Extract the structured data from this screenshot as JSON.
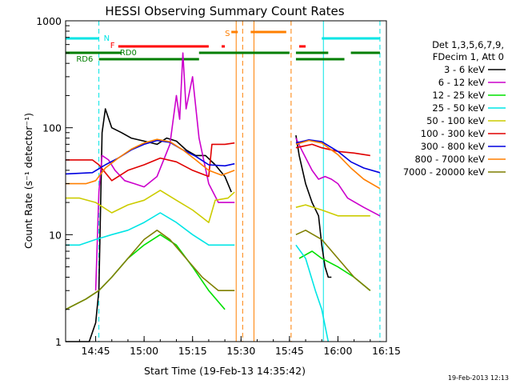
{
  "chart_data": {
    "type": "line",
    "title": "HESSI Observing Summary Count Rates",
    "xlabel": "Start Time (19-Feb-13 14:35:42)",
    "ylabel": "Count Rate (s⁻¹ detector⁻¹)",
    "y_scale": "log",
    "ylim": [
      1,
      1000
    ],
    "xlim": [
      "14:35:42",
      "16:15:00"
    ],
    "x_ticks": [
      "14:45",
      "15:00",
      "15:15",
      "15:30",
      "15:45",
      "16:00",
      "16:15"
    ],
    "y_ticks": [
      "1",
      "10",
      "100",
      "1000"
    ],
    "grid": false,
    "legend_position": "right",
    "legend_header": [
      "Det 1,3,5,6,7,9,",
      "FDecim 1, Att 0"
    ],
    "footer_date": "19-Feb-2013 12:13",
    "flag_labels": {
      "saa": "S",
      "night": "N",
      "flare": "F",
      "rd0": "RD0",
      "rd6": "RD6"
    },
    "flag_colors": {
      "saa": "#ff7f00",
      "night": "#00e5e5",
      "flare": "#ff0000",
      "decim": "#007f00"
    },
    "flags": {
      "night": [
        [
          "14:35:42",
          "14:46:00"
        ],
        [
          "15:55:00",
          "16:13:00"
        ]
      ],
      "flare": [
        [
          "14:52:00",
          "15:20:00"
        ],
        [
          "15:24:00",
          "15:25:00"
        ],
        [
          "15:48:00",
          "15:50:00"
        ]
      ],
      "saa": [
        [
          "15:27:00",
          "15:29:00"
        ],
        [
          "15:33:00",
          "15:44:00"
        ]
      ],
      "rd0": [
        [
          "14:35:42",
          "14:53:00"
        ],
        [
          "15:17:00",
          "15:45:00"
        ],
        [
          "15:47:00",
          "15:57:00"
        ],
        [
          "16:04:00",
          "16:13:00"
        ]
      ],
      "rd6": [
        [
          "14:46:00",
          "15:17:00"
        ],
        [
          "15:47:00",
          "16:02:00"
        ]
      ]
    },
    "vertical_lines": [
      {
        "time": "14:46:00",
        "color": "#00e5e5",
        "style": "dashed"
      },
      {
        "time": "15:28:30",
        "color": "#ff7f00",
        "style": "solid"
      },
      {
        "time": "15:30:30",
        "color": "#ff7f00",
        "style": "dashed"
      },
      {
        "time": "15:34:00",
        "color": "#ff7f00",
        "style": "solid"
      },
      {
        "time": "15:45:30",
        "color": "#ff7f00",
        "style": "dashed"
      },
      {
        "time": "15:55:30",
        "color": "#00e5e5",
        "style": "solid"
      },
      {
        "time": "16:13:00",
        "color": "#00e5e5",
        "style": "dashed"
      }
    ],
    "series": [
      {
        "name": "3 - 6 keV",
        "color": "#000000",
        "values": [
          [
            [
              "14:35:42",
              1
            ],
            [
              "14:43:00",
              1
            ],
            [
              "14:45:00",
              1.5
            ],
            [
              "14:46:00",
              3
            ],
            [
              "14:47:00",
              90
            ],
            [
              "14:48:00",
              150
            ],
            [
              "14:50:00",
              100
            ],
            [
              "14:53:00",
              90
            ],
            [
              "14:56:00",
              80
            ],
            [
              "15:00:00",
              75
            ],
            [
              "15:04:00",
              70
            ],
            [
              "15:07:00",
              80
            ],
            [
              "15:10:00",
              75
            ],
            [
              "15:13:00",
              62
            ],
            [
              "15:16:00",
              55
            ],
            [
              "15:19:00",
              55
            ],
            [
              "15:22:00",
              45
            ],
            [
              "15:25:00",
              35
            ],
            [
              "15:27:00",
              25
            ]
          ],
          [
            [
              "15:47:00",
              85
            ],
            [
              "15:48:00",
              55
            ],
            [
              "15:50:00",
              30
            ],
            [
              "15:52:00",
              20
            ],
            [
              "15:54:00",
              15
            ],
            [
              "15:55:00",
              8
            ],
            [
              "15:56:00",
              5
            ],
            [
              "15:57:00",
              4
            ],
            [
              "15:58:00",
              4
            ]
          ]
        ]
      },
      {
        "name": "6 - 12 keV",
        "color": "#cc00cc",
        "values": [
          [
            [
              "14:45:00",
              3
            ],
            [
              "14:46:00",
              25
            ],
            [
              "14:47:00",
              55
            ],
            [
              "14:49:00",
              50
            ],
            [
              "14:51:00",
              40
            ],
            [
              "14:54:00",
              32
            ],
            [
              "14:57:00",
              30
            ],
            [
              "15:00:00",
              28
            ],
            [
              "15:04:00",
              35
            ],
            [
              "15:08:00",
              70
            ],
            [
              "15:10:00",
              200
            ],
            [
              "15:11:00",
              120
            ],
            [
              "15:12:00",
              500
            ],
            [
              "15:13:00",
              150
            ],
            [
              "15:15:00",
              300
            ],
            [
              "15:17:00",
              80
            ],
            [
              "15:20:00",
              30
            ],
            [
              "15:23:00",
              20
            ],
            [
              "15:26:00",
              20
            ],
            [
              "15:28:00",
              20
            ]
          ],
          [
            [
              "15:47:00",
              80
            ],
            [
              "15:49:00",
              60
            ],
            [
              "15:52:00",
              40
            ],
            [
              "15:54:00",
              33
            ],
            [
              "15:56:00",
              35
            ],
            [
              "15:58:00",
              33
            ],
            [
              "16:00:00",
              30
            ],
            [
              "16:03:00",
              22
            ],
            [
              "16:08:00",
              18
            ],
            [
              "16:13:00",
              15
            ]
          ]
        ]
      },
      {
        "name": "12 - 25 keV",
        "color": "#00e000",
        "values": [
          [
            [
              "14:35:42",
              2
            ],
            [
              "14:42:00",
              2.5
            ],
            [
              "14:46:00",
              3
            ],
            [
              "14:50:00",
              4
            ],
            [
              "14:55:00",
              6
            ],
            [
              "15:00:00",
              8
            ],
            [
              "15:05:00",
              10
            ],
            [
              "15:10:00",
              8
            ],
            [
              "15:15:00",
              5
            ],
            [
              "15:20:00",
              3
            ],
            [
              "15:25:00",
              2
            ]
          ],
          [
            [
              "15:48:00",
              6
            ],
            [
              "15:52:00",
              7
            ],
            [
              "15:55:00",
              6
            ],
            [
              "16:00:00",
              5
            ],
            [
              "16:05:00",
              4
            ],
            [
              "16:10:00",
              3
            ]
          ]
        ]
      },
      {
        "name": "25 - 50 keV",
        "color": "#00e5e5",
        "values": [
          [
            [
              "14:35:42",
              8
            ],
            [
              "14:40:00",
              8
            ],
            [
              "14:45:00",
              9
            ],
            [
              "14:50:00",
              10
            ],
            [
              "14:55:00",
              11
            ],
            [
              "15:00:00",
              13
            ],
            [
              "15:05:00",
              16
            ],
            [
              "15:10:00",
              13
            ],
            [
              "15:15:00",
              10
            ],
            [
              "15:20:00",
              8
            ],
            [
              "15:25:00",
              8
            ],
            [
              "15:28:00",
              8
            ]
          ],
          [
            [
              "15:47:00",
              8
            ],
            [
              "15:50:00",
              6
            ],
            [
              "15:53:00",
              3
            ],
            [
              "15:55:00",
              2
            ],
            [
              "15:57:00",
              1
            ]
          ]
        ]
      },
      {
        "name": "50 - 100 keV",
        "color": "#cccc00",
        "values": [
          [
            [
              "14:35:42",
              22
            ],
            [
              "14:40:00",
              22
            ],
            [
              "14:45:00",
              20
            ],
            [
              "14:50:00",
              16
            ],
            [
              "14:55:00",
              19
            ],
            [
              "15:00:00",
              21
            ],
            [
              "15:05:00",
              26
            ],
            [
              "15:10:00",
              21
            ],
            [
              "15:15:00",
              17
            ],
            [
              "15:20:00",
              13
            ],
            [
              "15:22:00",
              21
            ],
            [
              "15:26:00",
              22
            ],
            [
              "15:28:00",
              25
            ]
          ],
          [
            [
              "15:47:00",
              18
            ],
            [
              "15:50:00",
              19
            ],
            [
              "15:55:00",
              17
            ],
            [
              "16:00:00",
              15
            ],
            [
              "16:05:00",
              15
            ],
            [
              "16:10:00",
              15
            ]
          ]
        ]
      },
      {
        "name": "100 - 300 keV",
        "color": "#e00000",
        "values": [
          [
            [
              "14:35:42",
              50
            ],
            [
              "14:44:00",
              50
            ],
            [
              "14:46:00",
              45
            ],
            [
              "14:50:00",
              32
            ],
            [
              "14:55:00",
              40
            ],
            [
              "15:00:00",
              45
            ],
            [
              "15:05:00",
              52
            ],
            [
              "15:10:00",
              48
            ],
            [
              "15:15:00",
              40
            ],
            [
              "15:20:00",
              35
            ],
            [
              "15:21:00",
              70
            ],
            [
              "15:25:00",
              70
            ],
            [
              "15:28:00",
              72
            ]
          ],
          [
            [
              "15:47:00",
              65
            ],
            [
              "15:52:00",
              70
            ],
            [
              "15:55:00",
              65
            ],
            [
              "16:00:00",
              60
            ],
            [
              "16:05:00",
              58
            ],
            [
              "16:10:00",
              55
            ]
          ]
        ]
      },
      {
        "name": "300 - 800 keV",
        "color": "#0000e0",
        "values": [
          [
            [
              "14:35:42",
              37
            ],
            [
              "14:44:00",
              38
            ],
            [
              "14:48:00",
              45
            ],
            [
              "14:52:00",
              52
            ],
            [
              "14:56:00",
              62
            ],
            [
              "15:00:00",
              70
            ],
            [
              "15:04:00",
              76
            ],
            [
              "15:08:00",
              73
            ],
            [
              "15:12:00",
              62
            ],
            [
              "15:16:00",
              54
            ],
            [
              "15:20:00",
              45
            ],
            [
              "15:25:00",
              44
            ],
            [
              "15:28:00",
              46
            ]
          ],
          [
            [
              "15:47:00",
              72
            ],
            [
              "15:51:00",
              77
            ],
            [
              "15:55:00",
              74
            ],
            [
              "16:00:00",
              60
            ],
            [
              "16:04:00",
              48
            ],
            [
              "16:08:00",
              42
            ],
            [
              "16:13:00",
              38
            ]
          ]
        ]
      },
      {
        "name": "800 - 7000 keV",
        "color": "#ff7f00",
        "values": [
          [
            [
              "14:35:42",
              30
            ],
            [
              "14:42:00",
              30
            ],
            [
              "14:45:00",
              32
            ],
            [
              "14:48:00",
              42
            ],
            [
              "14:52:00",
              52
            ],
            [
              "14:56:00",
              63
            ],
            [
              "15:00:00",
              72
            ],
            [
              "15:04:00",
              78
            ],
            [
              "15:08:00",
              74
            ],
            [
              "15:12:00",
              62
            ],
            [
              "15:16:00",
              50
            ],
            [
              "15:20:00",
              40
            ],
            [
              "15:24:00",
              36
            ],
            [
              "15:28:00",
              40
            ]
          ],
          [
            [
              "15:47:00",
              70
            ],
            [
              "15:51:00",
              76
            ],
            [
              "15:55:00",
              72
            ],
            [
              "16:00:00",
              56
            ],
            [
              "16:04:00",
              42
            ],
            [
              "16:08:00",
              33
            ],
            [
              "16:13:00",
              27
            ]
          ]
        ]
      },
      {
        "name": "7000 - 20000 keV",
        "color": "#7f7f00",
        "values": [
          [
            [
              "14:35:42",
              2
            ],
            [
              "14:42:00",
              2.5
            ],
            [
              "14:46:00",
              3
            ],
            [
              "14:50:00",
              4
            ],
            [
              "14:55:00",
              6
            ],
            [
              "15:00:00",
              9
            ],
            [
              "15:04:00",
              11
            ],
            [
              "15:08:00",
              9
            ],
            [
              "15:13:00",
              6
            ],
            [
              "15:18:00",
              4
            ],
            [
              "15:23:00",
              3
            ],
            [
              "15:28:00",
              3
            ]
          ],
          [
            [
              "15:47:00",
              10
            ],
            [
              "15:50:00",
              11
            ],
            [
              "15:55:00",
              9
            ],
            [
              "16:00:00",
              6
            ],
            [
              "16:05:00",
              4
            ],
            [
              "16:10:00",
              3
            ]
          ]
        ]
      }
    ]
  }
}
